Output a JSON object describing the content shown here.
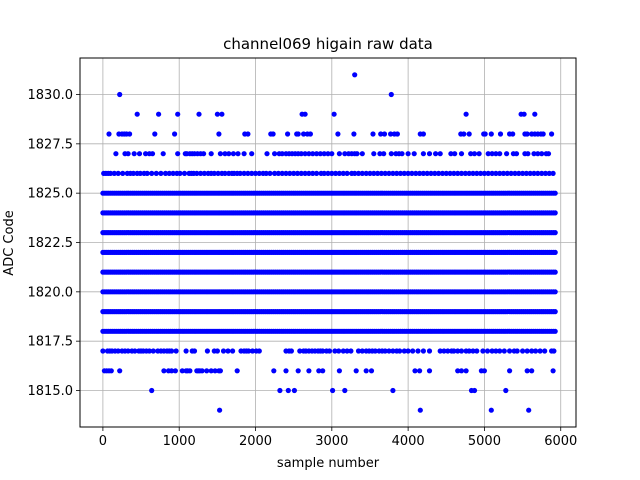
{
  "chart_data": {
    "type": "scatter",
    "title": "channel069 higain raw data",
    "xlabel": "sample number",
    "ylabel": "ADC Code",
    "xlim": [
      -300,
      6200
    ],
    "ylim": [
      1813.15,
      1831.85
    ],
    "xticks": [
      0,
      1000,
      2000,
      3000,
      4000,
      5000,
      6000
    ],
    "xtick_labels": [
      "0",
      "1000",
      "2000",
      "3000",
      "4000",
      "5000",
      "6000"
    ],
    "yticks": [
      1815.0,
      1817.5,
      1820.0,
      1822.5,
      1825.0,
      1827.5,
      1830.0
    ],
    "ytick_labels": [
      "1815.0",
      "1817.5",
      "1820.0",
      "1822.5",
      "1825.0",
      "1827.5",
      "1830.0"
    ],
    "grid": true,
    "marker_color": "#0000ff",
    "series": [
      {
        "levels": [
          {
            "y": 1814,
            "x": [
              1530,
              4160,
              5090,
              5580
            ]
          },
          {
            "y": 1815,
            "x": [
              640,
              2320,
              2430,
              2510,
              3010,
              3170,
              3800,
              4830,
              4870,
              5280
            ]
          },
          {
            "y": 1816,
            "x": [
              20,
              50,
              80,
              110,
              220,
              800,
              860,
              900,
              950,
              1040,
              1090,
              1110,
              1140,
              1230,
              1250,
              1270,
              1300,
              1360,
              1420,
              1470,
              1520,
              1540,
              1760,
              2240,
              2400,
              2560,
              2700,
              2830,
              2880,
              3100,
              3320,
              3450,
              3520,
              4090,
              4150,
              4280,
              4650,
              4700,
              4760,
              4960,
              5000,
              5330,
              5560,
              5620,
              5900
            ]
          },
          {
            "y": 1817,
            "x": [
              0,
              60,
              90,
              120,
              160,
              200,
              250,
              290,
              330,
              380,
              420,
              470,
              500,
              530,
              570,
              610,
              660,
              720,
              760,
              800,
              840,
              870,
              900,
              960,
              1090,
              1170,
              1200,
              1370,
              1460,
              1500,
              1580,
              1640,
              1700,
              1810,
              1850,
              1880,
              1910,
              1960,
              2010,
              2050,
              2400,
              2440,
              2470,
              2580,
              2630,
              2660,
              2700,
              2740,
              2780,
              2820,
              2850,
              2880,
              2930,
              2970,
              3040,
              3090,
              3150,
              3200,
              3250,
              3350,
              3400,
              3450,
              3490,
              3530,
              3570,
              3620,
              3660,
              3700,
              3750,
              3800,
              3850,
              3890,
              3950,
              4000,
              4060,
              4130,
              4200,
              4280,
              4420,
              4470,
              4520,
              4570,
              4600,
              4650,
              4700,
              4760,
              4800,
              4850,
              4900,
              4980,
              5040,
              5100,
              5150,
              5200,
              5260,
              5330,
              5390,
              5430,
              5500,
              5560,
              5620,
              5670,
              5730,
              5790,
              5880,
              5910
            ]
          }
        ],
        "dense_levels": [
          1818,
          1819,
          1820,
          1821,
          1822,
          1823,
          1824,
          1825
        ],
        "dense_x_range": [
          0,
          5950
        ],
        "sparse_levels": [
          {
            "y": 1826,
            "x": [
              10,
              40,
              70,
              100,
              150,
              200,
              260,
              320,
              360,
              400,
              450,
              490,
              540,
              580,
              640,
              700,
              760,
              820,
              870,
              920,
              970,
              1010,
              1070,
              1130,
              1160,
              1190,
              1230,
              1280,
              1330,
              1380,
              1420,
              1460,
              1510,
              1560,
              1600,
              1650,
              1690,
              1720,
              1760,
              1800,
              1850,
              1900,
              1950,
              2000,
              2050,
              2100,
              2140,
              2190,
              2250,
              2300,
              2350,
              2400,
              2450,
              2500,
              2550,
              2600,
              2650,
              2700,
              2750,
              2800,
              2860,
              2900,
              2950,
              3000,
              3050,
              3100,
              3150,
              3200,
              3260,
              3300,
              3350,
              3400,
              3450,
              3500,
              3550,
              3600,
              3650,
              3700,
              3750,
              3800,
              3850,
              3900,
              3950,
              4000,
              4050,
              4100,
              4150,
              4200,
              4250,
              4300,
              4350,
              4400,
              4450,
              4500,
              4550,
              4600,
              4650,
              4700,
              4750,
              4800,
              4850,
              4900,
              4950,
              5000,
              5050,
              5100,
              5150,
              5200,
              5250,
              5300,
              5350,
              5400,
              5450,
              5500,
              5550,
              5600,
              5650,
              5700,
              5750,
              5800,
              5850,
              5900
            ]
          },
          {
            "y": 1827,
            "x": [
              170,
              290,
              330,
              410,
              480,
              560,
              610,
              650,
              790,
              980,
              1080,
              1100,
              1140,
              1170,
              1200,
              1240,
              1280,
              1320,
              1420,
              1540,
              1600,
              1650,
              1710,
              1770,
              1850,
              1950,
              2150,
              2250,
              2310,
              2350,
              2400,
              2440,
              2480,
              2520,
              2560,
              2600,
              2650,
              2700,
              2750,
              2800,
              2850,
              2900,
              2950,
              3000,
              3100,
              3170,
              3220,
              3260,
              3300,
              3330,
              3400,
              3550,
              3630,
              3680,
              3780,
              3840,
              3880,
              3920,
              4000,
              4080,
              4200,
              4280,
              4360,
              4420,
              4560,
              4610,
              4700,
              4820,
              4870,
              4930,
              5050,
              5100,
              5150,
              5200,
              5290,
              5380,
              5420,
              5530,
              5570,
              5650,
              5700,
              5750,
              5810,
              5840
            ]
          },
          {
            "y": 1828,
            "x": [
              80,
              210,
              250,
              280,
              310,
              350,
              680,
              940,
              1520,
              1860,
              1900,
              2200,
              2230,
              2420,
              2540,
              2560,
              2630,
              2680,
              2720,
              3080,
              3290,
              3540,
              3640,
              3690,
              3770,
              3820,
              3860,
              4160,
              4200,
              4690,
              4730,
              4800,
              4990,
              5010,
              5090,
              5210,
              5330,
              5370,
              5530,
              5560,
              5620,
              5660,
              5700,
              5740,
              5770,
              5880
            ]
          },
          {
            "y": 1829,
            "x": [
              450,
              730,
              980,
              1260,
              1500,
              1560,
              2610,
              2650,
              3030,
              4760,
              5480,
              5520,
              5660
            ]
          },
          {
            "y": 1830,
            "x": [
              220,
              3780
            ]
          },
          {
            "y": 1831,
            "x": [
              3300
            ]
          }
        ]
      }
    ]
  }
}
